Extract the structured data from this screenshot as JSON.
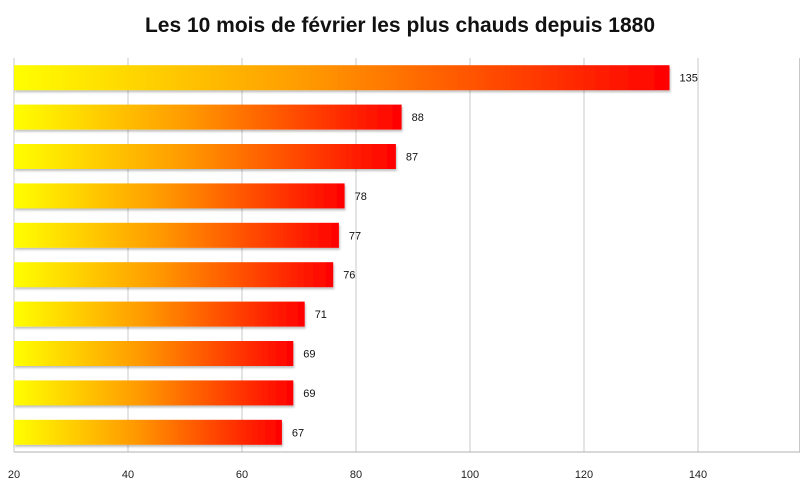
{
  "chart_data": {
    "type": "bar",
    "orientation": "horizontal",
    "title": "Les 10 mois de février les plus chauds depuis 1880",
    "categories": [
      "",
      "",
      "",
      "",
      "",
      "",
      "",
      "",
      "",
      ""
    ],
    "values": [
      135,
      88,
      87,
      78,
      77,
      76,
      71,
      69,
      69,
      67
    ],
    "xlim": [
      20,
      160
    ],
    "xticks": [
      20,
      40,
      60,
      80,
      100,
      120,
      140
    ],
    "grid": "vertical",
    "legend": "none",
    "colors": {
      "bar_start": "#ffff00",
      "bar_mid": "#ff9900",
      "bar_end": "#ff0000",
      "grid": "#c9c9c9"
    }
  }
}
